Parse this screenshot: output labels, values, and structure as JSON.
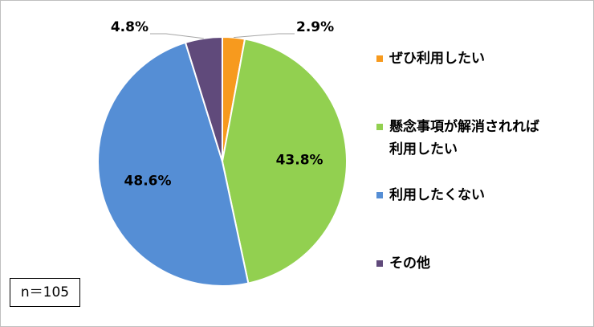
{
  "chart_data": {
    "type": "pie",
    "categories": [
      "ぜひ利用したい",
      "懸念事項が解消されれば利用したい",
      "利用したくない",
      "その他"
    ],
    "values": [
      2.9,
      43.8,
      48.6,
      4.8
    ],
    "value_labels": [
      "2.9%",
      "43.8%",
      "48.6%",
      "4.8%"
    ],
    "colors": [
      "#f79a1e",
      "#92d050",
      "#558ed5",
      "#604a7b"
    ],
    "legend": "right",
    "annotation": "n＝105"
  }
}
